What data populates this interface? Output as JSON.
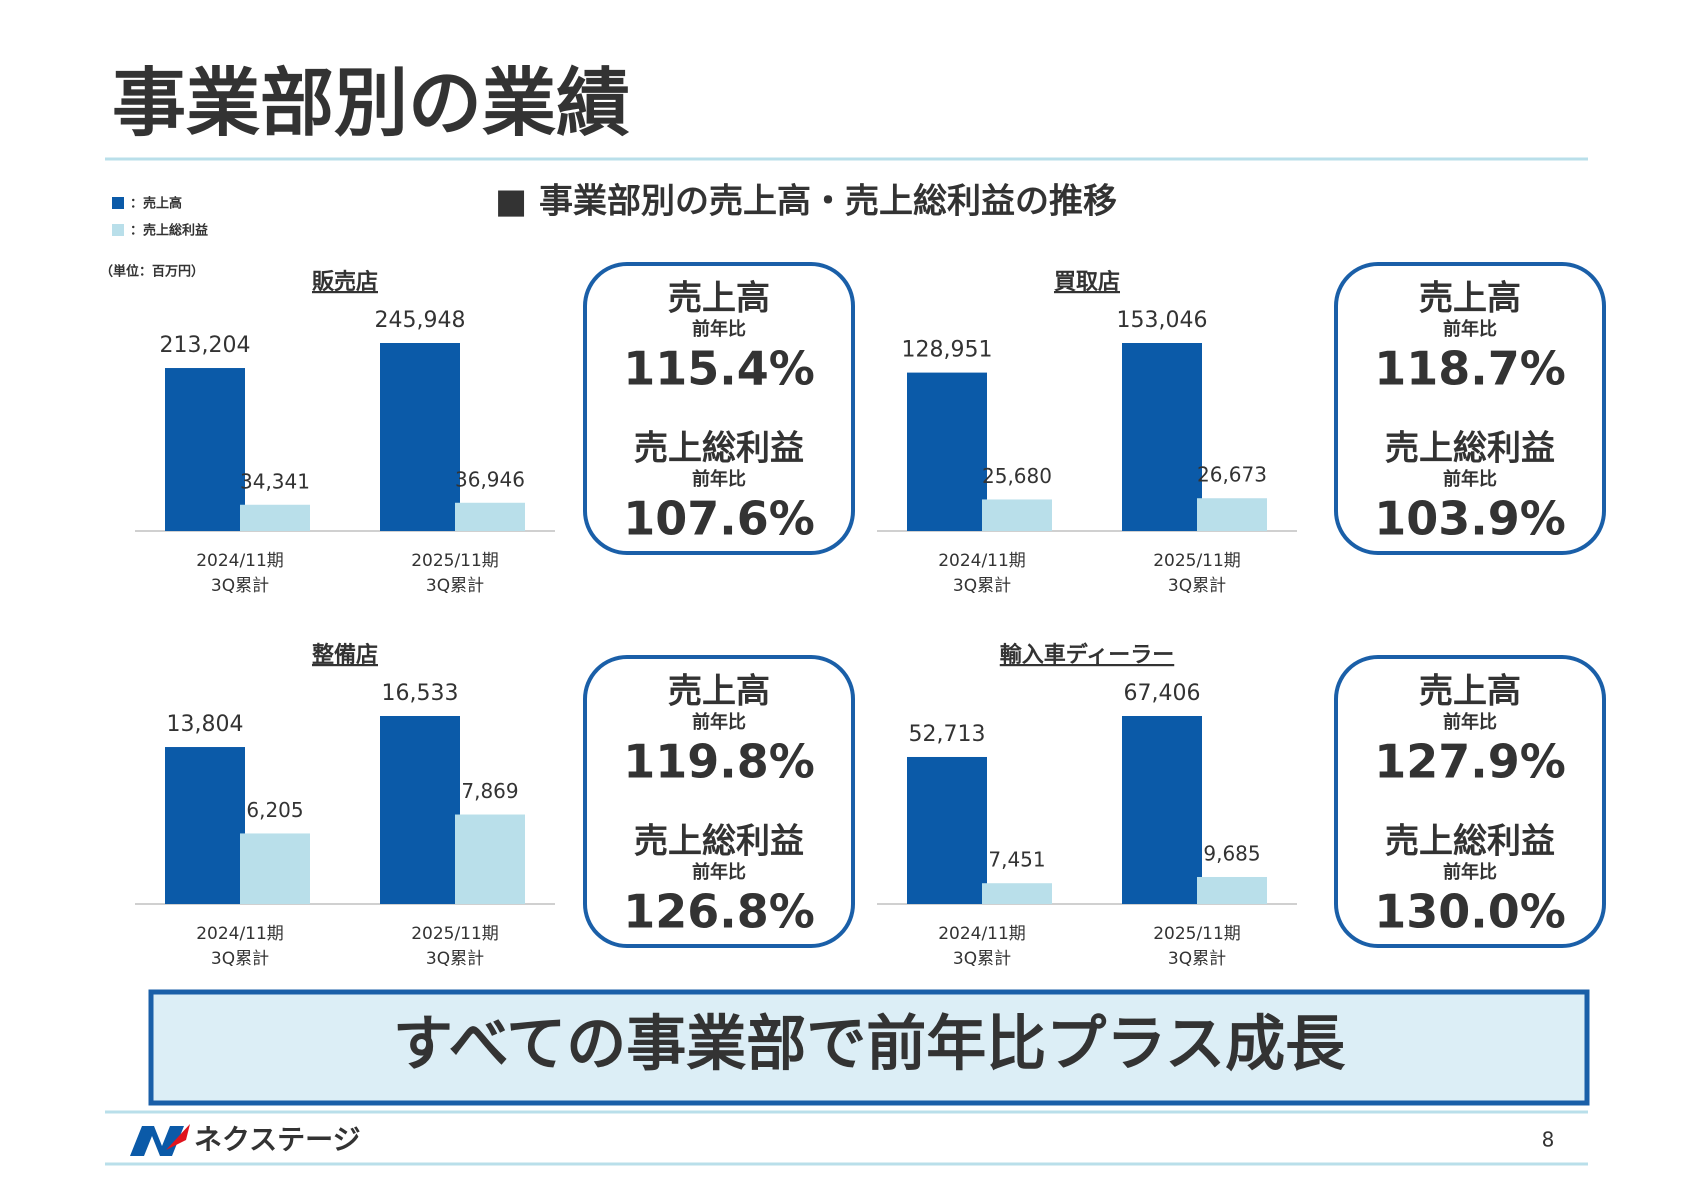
{
  "title": "事業部別の業績",
  "subtitle": "■ 事業部別の売上高・売上総利益の推移",
  "legend": [
    {
      "label": "：売上高",
      "color": "#0b5aa8"
    },
    {
      "label": "：売上総利益",
      "color": "#b9dfea"
    }
  ],
  "unit": "（単位：百万円）",
  "chart_data": [
    {
      "type": "bar",
      "title": "販売店",
      "categories": [
        [
          "2024/11期",
          "3Q累計"
        ],
        [
          "2025/11期",
          "3Q累計"
        ]
      ],
      "series": [
        {
          "color": "#0b5aa8",
          "values": [
            213204,
            245948
          ],
          "value_labels": [
            "213,204",
            "245,948"
          ]
        },
        {
          "color": "#b9dfea",
          "values": [
            34341,
            36946
          ],
          "value_labels": [
            "34,341",
            "36,946"
          ]
        }
      ]
    },
    {
      "type": "bar",
      "title": "買取店",
      "categories": [
        [
          "2024/11期",
          "3Q累計"
        ],
        [
          "2025/11期",
          "3Q累計"
        ]
      ],
      "series": [
        {
          "color": "#0b5aa8",
          "values": [
            128951,
            153046
          ],
          "value_labels": [
            "128,951",
            "153,046"
          ]
        },
        {
          "color": "#b9dfea",
          "values": [
            25680,
            26673
          ],
          "value_labels": [
            "25,680",
            "26,673"
          ]
        }
      ]
    },
    {
      "type": "bar",
      "title": "整備店",
      "categories": [
        [
          "2024/11期",
          "3Q累計"
        ],
        [
          "2025/11期",
          "3Q累計"
        ]
      ],
      "series": [
        {
          "color": "#0b5aa8",
          "values": [
            13804,
            16533
          ],
          "value_labels": [
            "13,804",
            "16,533"
          ]
        },
        {
          "color": "#b9dfea",
          "values": [
            6205,
            7869
          ],
          "value_labels": [
            "6,205",
            "7,869"
          ]
        }
      ]
    },
    {
      "type": "bar",
      "title": "輸入車ディーラー",
      "categories": [
        [
          "2024/11期",
          "3Q累計"
        ],
        [
          "2025/11期",
          "3Q累計"
        ]
      ],
      "series": [
        {
          "color": "#0b5aa8",
          "values": [
            52713,
            67406
          ],
          "value_labels": [
            "52,713",
            "67,406"
          ]
        },
        {
          "color": "#b9dfea",
          "values": [
            7451,
            9685
          ],
          "value_labels": [
            "7,451",
            "9,685"
          ]
        }
      ]
    }
  ],
  "growth_boxes": [
    {
      "sales_label": "売上高",
      "sales_yoy_label": "前年比",
      "sales_yoy": "115.4%",
      "gross_profit_label": "売上総利益",
      "gross_profit_yoy_label": "前年比",
      "gross_profit_yoy": "107.6%"
    },
    {
      "sales_label": "売上高",
      "sales_yoy_label": "前年比",
      "sales_yoy": "118.7%",
      "gross_profit_label": "売上総利益",
      "gross_profit_yoy_label": "前年比",
      "gross_profit_yoy": "103.9%"
    },
    {
      "sales_label": "売上高",
      "sales_yoy_label": "前年比",
      "sales_yoy": "119.8%",
      "gross_profit_label": "売上総利益",
      "gross_profit_yoy_label": "前年比",
      "gross_profit_yoy": "126.8%"
    },
    {
      "sales_label": "売上高",
      "sales_yoy_label": "前年比",
      "sales_yoy": "127.9%",
      "gross_profit_label": "売上総利益",
      "gross_profit_yoy_label": "前年比",
      "gross_profit_yoy": "130.0%"
    }
  ],
  "banner": "すべての事業部で前年比プラス成長",
  "footer": {
    "logo": "ネクステージ",
    "page_number": 8
  }
}
